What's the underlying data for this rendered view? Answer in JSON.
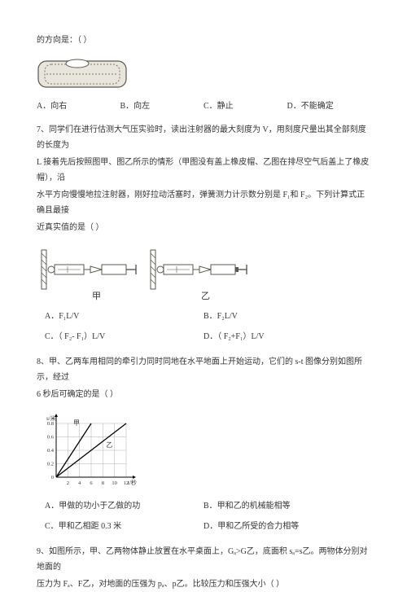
{
  "colors": {
    "text": "#333333",
    "bg": "#ffffff",
    "img_fill": "#e8e6dc",
    "img_stroke": "#5a584f",
    "grid": "#b0b0b0",
    "axis": "#000000",
    "chart_line": "#000000"
  },
  "q_dir_prompt": "的方向是：（     ）",
  "q6_options": {
    "a": "A．向右",
    "b": "B．向左",
    "c": "C．静止",
    "d": "D．不能确定"
  },
  "q7": {
    "l1": "7、同学们在进行估测大气压实验时，读出注射器的最大刻度为 V，用刻度尺量出其全部刻度的长度为",
    "l2": "L 接着先后按照图甲、图乙所示的情形（甲图没有盖上橡皮帽、乙图在排尽空气后盖上了橡皮帽），沿",
    "l3": "水平方向慢慢地拉注射器，刚好拉动活塞时，弹簧测力计示数分别是 F₁和 F₂。下列计算式正确且最接",
    "l4": "近真实值的是（     ）",
    "opt_a": "A．F₁L/V",
    "opt_b": "B．F₂L/V",
    "opt_c": "C．（ F₂- F₁）L/V",
    "opt_d": "D．（ F₂+F₁）L/V",
    "label_left": "甲",
    "label_right": "乙"
  },
  "q8": {
    "l1": "8、甲、乙两车用相同的牵引力同时同地在水平地面上开始运动，它们的 s-t 图像分别如图所示，经过",
    "l2": "6 秒后可确定的是（     ）",
    "opt_a": "A．甲做的功小于乙做的功",
    "opt_b": "B．甲和乙的机械能相等",
    "opt_c": "C．甲和乙相距 0.3 米",
    "opt_d": "D．甲和乙所受的合力相等",
    "chart": {
      "type": "line",
      "y_label": "s/米",
      "x_label": "t/秒",
      "x_ticks": [
        "2",
        "4",
        "6",
        "8",
        "10",
        "12"
      ],
      "y_ticks": [
        "0",
        "0.2",
        "0.4",
        "0.6",
        "0.8"
      ],
      "series_labels": {
        "a": "甲",
        "b": "乙"
      },
      "series_a": [
        [
          0,
          0
        ],
        [
          6,
          0.8
        ]
      ],
      "series_b": [
        [
          0,
          0
        ],
        [
          12,
          0.8
        ]
      ],
      "xlim": [
        0,
        12
      ],
      "ylim": [
        0,
        0.8
      ]
    }
  },
  "q9": {
    "l1": "9、如图所示，甲、乙两物体静止放置在水平桌面上，Gₐ>G乙，底面积 sₐ=s乙。两物体分别对地面的",
    "l2": "压力为 Fₐ、F乙，对地面的压强为 pₐ、p乙。比较压力和压强大小（     ）"
  }
}
